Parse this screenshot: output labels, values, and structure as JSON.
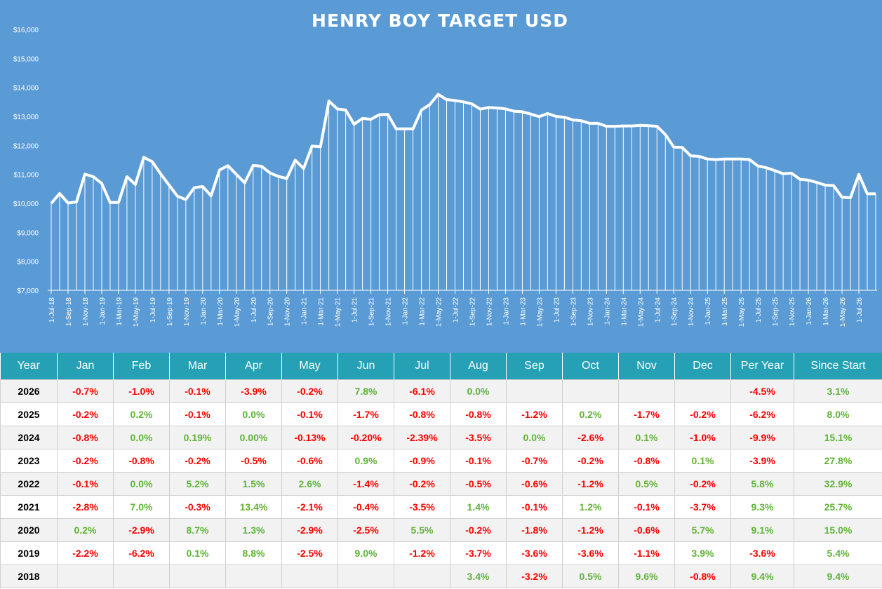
{
  "chart_data": {
    "type": "line",
    "title": "HENRY BOY TARGET USD",
    "ylim": [
      7000,
      16000
    ],
    "ytick_labels": [
      "$7,000",
      "$8,000",
      "$9,000",
      "$10,000",
      "$11,000",
      "$12,000",
      "$13,000",
      "$14,000",
      "$15,000",
      "$16,000"
    ],
    "x_labels": [
      "1-Jul-18",
      "1-Sep-18",
      "1-Nov-18",
      "1-Jan-19",
      "1-Mar-19",
      "1-May-19",
      "1-Jul-19",
      "1-Sep-19",
      "1-Nov-19",
      "1-Jan-20",
      "1-Mar-20",
      "1-May-20",
      "1-Jul-20",
      "1-Sep-20",
      "1-Nov-20",
      "1-Jan-21",
      "1-Mar-21",
      "1-May-21",
      "1-Jul-21",
      "1-Sep-21",
      "1-Nov-21",
      "1-Jan-22",
      "1-Mar-22",
      "1-May-22",
      "1-Jul-22",
      "1-Sep-22",
      "1-Nov-22",
      "1-Jan-23",
      "1-Mar-23",
      "1-May-23",
      "1-Jul-23",
      "1-Sep-23",
      "1-Nov-23",
      "1-Jan-24",
      "1-Mar-24",
      "1-May-24",
      "1-Jul-24",
      "1-Sep-24",
      "1-Nov-24",
      "1-Jan-25",
      "1-Mar-25",
      "1-May-25",
      "1-Jul-25",
      "1-Sep-25",
      "1-Nov-25",
      "1-Jan-26",
      "1-Mar-26",
      "1-May-26",
      "1-Jul-26"
    ],
    "start_date": "1-Jul-18",
    "values": [
      10000,
      10340,
      10010,
      10050,
      11010,
      10920,
      10690,
      10030,
      10030,
      10920,
      10650,
      11590,
      11440,
      11020,
      10630,
      10250,
      10130,
      10540,
      10580,
      10260,
      11150,
      11300,
      11000,
      10710,
      11310,
      11280,
      11050,
      10930,
      10860,
      11490,
      11200,
      11980,
      11950,
      13530,
      13260,
      13220,
      12730,
      12930,
      12900,
      13060,
      13070,
      12570,
      12570,
      12570,
      13220,
      13410,
      13760,
      13580,
      13550,
      13500,
      13430,
      13250,
      13310,
      13290,
      13260,
      13180,
      13160,
      13080,
      12990,
      13100,
      13000,
      12970,
      12880,
      12850,
      12760,
      12760,
      12660,
      12660,
      12670,
      12670,
      12690,
      12680,
      12660,
      12370,
      11940,
      11930,
      11640,
      11620,
      11530,
      11510,
      11530,
      11530,
      11530,
      11510,
      11290,
      11230,
      11130,
      11020,
      11040,
      10830,
      10800,
      10720,
      10630,
      10610,
      10210,
      10190,
      11000,
      10330,
      10330
    ]
  },
  "table": {
    "headers": [
      "Year",
      "Jan",
      "Feb",
      "Mar",
      "Apr",
      "May",
      "Jun",
      "Jul",
      "Aug",
      "Sep",
      "Oct",
      "Nov",
      "Dec",
      "Per Year",
      "Since Start"
    ],
    "rows": [
      [
        "2026",
        "-0.7%",
        "-1.0%",
        "-0.1%",
        "-3.9%",
        "-0.2%",
        "7.8%",
        "-6.1%",
        "0.0%",
        "",
        "",
        "",
        "",
        "-4.5%",
        "3.1%"
      ],
      [
        "2025",
        "-0.2%",
        "0.2%",
        "-0.1%",
        "0.0%",
        "-0.1%",
        "-1.7%",
        "-0.8%",
        "-0.8%",
        "-1.2%",
        "0.2%",
        "-1.7%",
        "-0.2%",
        "-6.2%",
        "8.0%"
      ],
      [
        "2024",
        "-0.8%",
        "0.0%",
        "0.19%",
        "0.00%",
        "-0.13%",
        "-0.20%",
        "-2.39%",
        "-3.5%",
        "0.0%",
        "-2.6%",
        "0.1%",
        "-1.0%",
        "-9.9%",
        "15.1%"
      ],
      [
        "2023",
        "-0.2%",
        "-0.8%",
        "-0.2%",
        "-0.5%",
        "-0.6%",
        "0.9%",
        "-0.9%",
        "-0.1%",
        "-0.7%",
        "-0.2%",
        "-0.8%",
        "0.1%",
        "-3.9%",
        "27.8%"
      ],
      [
        "2022",
        "-0.1%",
        "0.0%",
        "5.2%",
        "1.5%",
        "2.6%",
        "-1.4%",
        "-0.2%",
        "-0.5%",
        "-0.6%",
        "-1.2%",
        "0.5%",
        "-0.2%",
        "5.8%",
        "32.9%"
      ],
      [
        "2021",
        "-2.8%",
        "7.0%",
        "-0.3%",
        "13.4%",
        "-2.1%",
        "-0.4%",
        "-3.5%",
        "1.4%",
        "-0.1%",
        "1.2%",
        "-0.1%",
        "-3.7%",
        "9.3%",
        "25.7%"
      ],
      [
        "2020",
        "0.2%",
        "-2.9%",
        "8.7%",
        "1.3%",
        "-2.9%",
        "-2.5%",
        "5.5%",
        "-0.2%",
        "-1.8%",
        "-1.2%",
        "-0.6%",
        "5.7%",
        "9.1%",
        "15.0%"
      ],
      [
        "2019",
        "-2.2%",
        "-6.2%",
        "0.1%",
        "8.8%",
        "-2.5%",
        "9.0%",
        "-1.2%",
        "-3.7%",
        "-3.6%",
        "-3.6%",
        "-1.1%",
        "3.9%",
        "-3.6%",
        "5.4%"
      ],
      [
        "2018",
        "",
        "",
        "",
        "",
        "",
        "",
        "",
        "3.4%",
        "-3.2%",
        "0.5%",
        "9.6%",
        "-0.8%",
        "9.4%",
        "9.4%"
      ]
    ],
    "colors": {
      "header_bg": "#25a0b5",
      "negative": "#ff0000",
      "positive": "#5fb336",
      "chart_bg": "#5b9bd5"
    }
  }
}
